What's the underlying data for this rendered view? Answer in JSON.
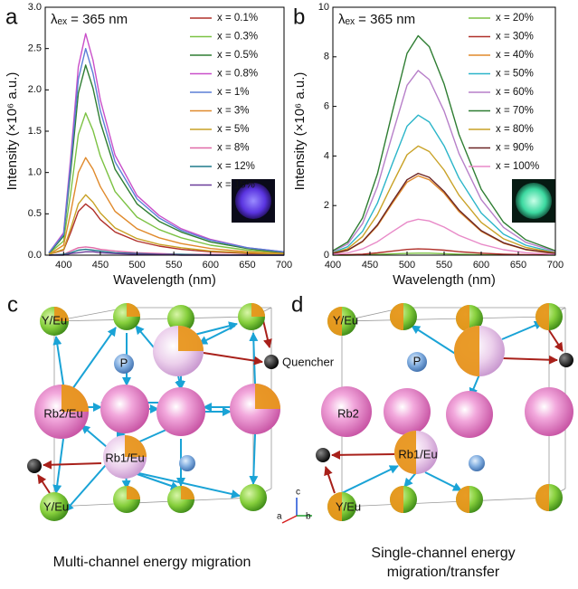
{
  "chart_data": [
    {
      "type": "line",
      "panel_label": "a",
      "annotation": "λₑₓ = 365 nm",
      "xlabel": "Wavelength (nm)",
      "ylabel": "Intensity (×10⁶ a.u.)",
      "x": [
        380,
        400,
        410,
        420,
        430,
        440,
        450,
        470,
        500,
        530,
        560,
        600,
        650,
        700
      ],
      "xlim": [
        375,
        700
      ],
      "xticks": [
        400,
        450,
        500,
        550,
        600,
        650,
        700
      ],
      "ylim": [
        0,
        3
      ],
      "yticks": [
        {
          "value": 0,
          "label": "0.0"
        },
        0.5,
        {
          "value": 1,
          "label": "1.0"
        },
        1.5,
        {
          "value": 2,
          "label": "2.0"
        },
        2.5,
        {
          "value": 3,
          "label": "3.0"
        }
      ],
      "series": [
        {
          "name": "x = 0.1%",
          "color": "#b0302a",
          "values": [
            0.01,
            0.06,
            0.28,
            0.53,
            0.62,
            0.55,
            0.43,
            0.28,
            0.17,
            0.11,
            0.07,
            0.04,
            0.02,
            0.01
          ]
        },
        {
          "name": "x = 0.3%",
          "color": "#7cc243",
          "values": [
            0.02,
            0.17,
            0.77,
            1.46,
            1.72,
            1.51,
            1.2,
            0.77,
            0.46,
            0.31,
            0.21,
            0.12,
            0.06,
            0.03
          ]
        },
        {
          "name": "x = 0.5%",
          "color": "#2e7d32",
          "values": [
            0.02,
            0.23,
            1.04,
            1.96,
            2.3,
            2.02,
            1.61,
            1.04,
            0.62,
            0.41,
            0.28,
            0.16,
            0.08,
            0.03
          ]
        },
        {
          "name": "x = 0.8%",
          "color": "#c94fc9",
          "values": [
            0.03,
            0.27,
            1.21,
            2.28,
            2.68,
            2.36,
            1.88,
            1.21,
            0.72,
            0.48,
            0.32,
            0.19,
            0.09,
            0.04
          ]
        },
        {
          "name": "x = 1%",
          "color": "#5b7fd6",
          "values": [
            0.03,
            0.25,
            1.13,
            2.13,
            2.5,
            2.2,
            1.75,
            1.13,
            0.68,
            0.45,
            0.3,
            0.18,
            0.09,
            0.04
          ]
        },
        {
          "name": "x = 3%",
          "color": "#e08a2c",
          "values": [
            0.01,
            0.12,
            0.53,
            1.0,
            1.18,
            1.04,
            0.83,
            0.53,
            0.32,
            0.21,
            0.14,
            0.08,
            0.04,
            0.02
          ]
        },
        {
          "name": "x = 5%",
          "color": "#c9a227",
          "values": [
            0.01,
            0.07,
            0.33,
            0.62,
            0.73,
            0.64,
            0.51,
            0.33,
            0.2,
            0.13,
            0.09,
            0.05,
            0.03,
            0.01
          ]
        },
        {
          "name": "x = 8%",
          "color": "#e06aa8",
          "values": [
            0,
            0.01,
            0.05,
            0.09,
            0.1,
            0.09,
            0.07,
            0.05,
            0.03,
            0.02,
            0.01,
            0.01,
            0,
            0
          ]
        },
        {
          "name": "x = 12%",
          "color": "#1f7a8c",
          "values": [
            0,
            0.01,
            0.03,
            0.06,
            0.07,
            0.06,
            0.05,
            0.03,
            0.02,
            0.01,
            0.01,
            0,
            0,
            0
          ]
        },
        {
          "name": "x = 15%",
          "color": "#6a3d9a",
          "values": [
            0,
            0,
            0.02,
            0.03,
            0.04,
            0.04,
            0.03,
            0.02,
            0.01,
            0.01,
            0,
            0,
            0,
            0
          ]
        }
      ]
    },
    {
      "type": "line",
      "panel_label": "b",
      "annotation": "λₑₓ = 365 nm",
      "xlabel": "Wavelength (nm)",
      "ylabel": "Intensity (×10⁶ a.u.)",
      "x": [
        400,
        420,
        440,
        460,
        480,
        500,
        515,
        530,
        550,
        570,
        600,
        630,
        660,
        700
      ],
      "xlim": [
        400,
        700
      ],
      "xticks": [
        400,
        450,
        500,
        550,
        600,
        650,
        700
      ],
      "ylim": [
        0,
        10
      ],
      "yticks": [
        0,
        2,
        4,
        6,
        8,
        10
      ],
      "series": [
        {
          "name": "x = 20%",
          "color": "#7cc243",
          "values": [
            0,
            0,
            0.01,
            0.03,
            0.05,
            0.07,
            0.08,
            0.08,
            0.06,
            0.04,
            0.02,
            0.01,
            0.01,
            0
          ]
        },
        {
          "name": "x = 30%",
          "color": "#b0302a",
          "values": [
            0.01,
            0.02,
            0.04,
            0.09,
            0.16,
            0.23,
            0.25,
            0.24,
            0.2,
            0.14,
            0.08,
            0.04,
            0.02,
            0.01
          ]
        },
        {
          "name": "x = 40%",
          "color": "#e08a2c",
          "values": [
            0.06,
            0.19,
            0.54,
            1.18,
            2.08,
            2.94,
            3.2,
            3.04,
            2.5,
            1.76,
            0.96,
            0.48,
            0.22,
            0.06
          ]
        },
        {
          "name": "x = 50%",
          "color": "#2bb5c9",
          "values": [
            0.11,
            0.34,
            0.96,
            2.09,
            3.67,
            5.2,
            5.65,
            5.37,
            4.41,
            3.11,
            1.7,
            0.85,
            0.4,
            0.11
          ]
        },
        {
          "name": "x = 60%",
          "color": "#b77fc9",
          "values": [
            0.15,
            0.45,
            1.27,
            2.76,
            4.84,
            6.85,
            7.45,
            7.08,
            5.81,
            4.1,
            2.24,
            1.12,
            0.52,
            0.15
          ]
        },
        {
          "name": "x = 70%",
          "color": "#2e7d32",
          "values": [
            0.18,
            0.53,
            1.5,
            3.27,
            5.75,
            8.14,
            8.85,
            8.41,
            6.9,
            4.87,
            2.66,
            1.33,
            0.62,
            0.18
          ]
        },
        {
          "name": "x = 80%",
          "color": "#c9a227",
          "values": [
            0.09,
            0.26,
            0.75,
            1.63,
            2.86,
            4.05,
            4.4,
            4.18,
            3.43,
            2.42,
            1.32,
            0.66,
            0.31,
            0.09
          ]
        },
        {
          "name": "x = 90%",
          "color": "#6b2424",
          "values": [
            0.07,
            0.2,
            0.56,
            1.22,
            2.15,
            3.04,
            3.3,
            3.14,
            2.57,
            1.82,
            0.99,
            0.5,
            0.23,
            0.07
          ]
        },
        {
          "name": "x = 100%",
          "color": "#e88ac8",
          "values": [
            0.03,
            0.09,
            0.25,
            0.54,
            0.94,
            1.33,
            1.45,
            1.38,
            1.13,
            0.8,
            0.44,
            0.22,
            0.1,
            0.03
          ]
        }
      ]
    }
  ],
  "diagrams": {
    "c": {
      "panel_label": "c",
      "labels": [
        "Y/Eu",
        "P",
        "Quencher",
        "Rb2/Eu",
        "Rb1/Eu",
        "Y/Eu"
      ],
      "axes": [
        "c",
        "a",
        "b"
      ],
      "caption": "Multi-channel energy migration"
    },
    "d": {
      "panel_label": "d",
      "labels": [
        "Y/Eu",
        "P",
        "Rb2",
        "Rb1/Eu",
        "Y/Eu"
      ],
      "caption": [
        "Single-channel energy",
        "migration/transfer"
      ]
    }
  }
}
